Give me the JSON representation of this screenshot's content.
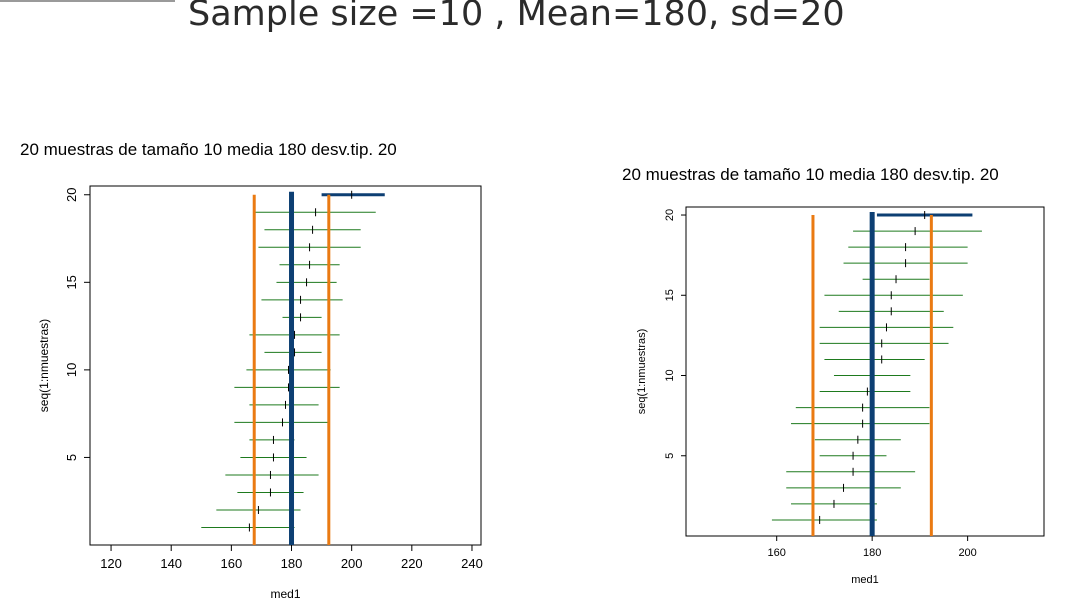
{
  "slide": {
    "title": "Sample size =10 , Mean=180, sd=20"
  },
  "chart_data": [
    {
      "type": "interval",
      "title": "20  muestras de tamaño  10  media  180  desv.tip.  20",
      "xlabel": "med1",
      "ylabel": "seq(1:nmuestras)",
      "xlim": [
        113,
        243
      ],
      "ylim": [
        0,
        20.5
      ],
      "xticks": [
        "120",
        "140",
        "160",
        "180",
        "200",
        "220",
        "240"
      ],
      "yticks": [
        "5",
        "10",
        "15",
        "20"
      ],
      "true_mean": 180,
      "limits": [
        167.6,
        192.4
      ],
      "colors": {
        "interval": "#1e7a1e",
        "miss": "#0d3f73",
        "mean": "#0d3f73",
        "limit": "#ea7a12"
      },
      "intervals": [
        {
          "i": 1,
          "lo": 150,
          "hi": 181,
          "mean": 166
        },
        {
          "i": 2,
          "lo": 155,
          "hi": 183,
          "mean": 169
        },
        {
          "i": 3,
          "lo": 162,
          "hi": 184,
          "mean": 173
        },
        {
          "i": 4,
          "lo": 158,
          "hi": 189,
          "mean": 173
        },
        {
          "i": 5,
          "lo": 163,
          "hi": 185,
          "mean": 174
        },
        {
          "i": 6,
          "lo": 166,
          "hi": 181,
          "mean": 174
        },
        {
          "i": 7,
          "lo": 161,
          "hi": 192,
          "mean": 177
        },
        {
          "i": 8,
          "lo": 166,
          "hi": 189,
          "mean": 178
        },
        {
          "i": 9,
          "lo": 161,
          "hi": 196,
          "mean": 179
        },
        {
          "i": 10,
          "lo": 165,
          "hi": 193,
          "mean": 179
        },
        {
          "i": 11,
          "lo": 171,
          "hi": 190,
          "mean": 181
        },
        {
          "i": 12,
          "lo": 166,
          "hi": 196,
          "mean": 181
        },
        {
          "i": 13,
          "lo": 177,
          "hi": 190,
          "mean": 183
        },
        {
          "i": 14,
          "lo": 170,
          "hi": 197,
          "mean": 183
        },
        {
          "i": 15,
          "lo": 175,
          "hi": 195,
          "mean": 185
        },
        {
          "i": 16,
          "lo": 176,
          "hi": 196,
          "mean": 186
        },
        {
          "i": 17,
          "lo": 169,
          "hi": 203,
          "mean": 186
        },
        {
          "i": 18,
          "lo": 171,
          "hi": 203,
          "mean": 187
        },
        {
          "i": 19,
          "lo": 168,
          "hi": 208,
          "mean": 188
        },
        {
          "i": 20,
          "lo": 190,
          "hi": 211,
          "mean": 200
        }
      ]
    },
    {
      "type": "interval",
      "title": "20  muestras de tamaño  10  media  180  desv.tip.  20",
      "xlabel": "med1",
      "ylabel": "seq(1:nmuestras)",
      "xlim": [
        141,
        216
      ],
      "ylim": [
        0,
        20.5
      ],
      "xticks": [
        "160",
        "180",
        "200"
      ],
      "yticks": [
        "5",
        "10",
        "15",
        "20"
      ],
      "true_mean": 180,
      "limits": [
        167.6,
        192.4
      ],
      "colors": {
        "interval": "#1e7a1e",
        "miss": "#0d3f73",
        "mean": "#0d3f73",
        "limit": "#ea7a12"
      },
      "intervals": [
        {
          "i": 1,
          "lo": 159,
          "hi": 181,
          "mean": 169
        },
        {
          "i": 2,
          "lo": 163,
          "hi": 181,
          "mean": 172
        },
        {
          "i": 3,
          "lo": 162,
          "hi": 186,
          "mean": 174
        },
        {
          "i": 4,
          "lo": 162,
          "hi": 189,
          "mean": 176
        },
        {
          "i": 5,
          "lo": 169,
          "hi": 183,
          "mean": 176
        },
        {
          "i": 6,
          "lo": 168,
          "hi": 186,
          "mean": 177
        },
        {
          "i": 7,
          "lo": 163,
          "hi": 192,
          "mean": 178
        },
        {
          "i": 8,
          "lo": 164,
          "hi": 192,
          "mean": 178
        },
        {
          "i": 9,
          "lo": 169,
          "hi": 188,
          "mean": 179
        },
        {
          "i": 10,
          "lo": 172,
          "hi": 188,
          "mean": 180
        },
        {
          "i": 11,
          "lo": 170,
          "hi": 191,
          "mean": 182
        },
        {
          "i": 12,
          "lo": 169,
          "hi": 196,
          "mean": 182
        },
        {
          "i": 13,
          "lo": 169,
          "hi": 197,
          "mean": 183
        },
        {
          "i": 14,
          "lo": 173,
          "hi": 195,
          "mean": 184
        },
        {
          "i": 15,
          "lo": 170,
          "hi": 199,
          "mean": 184
        },
        {
          "i": 16,
          "lo": 178,
          "hi": 192,
          "mean": 185
        },
        {
          "i": 17,
          "lo": 174,
          "hi": 200,
          "mean": 187
        },
        {
          "i": 18,
          "lo": 175,
          "hi": 200,
          "mean": 187
        },
        {
          "i": 19,
          "lo": 176,
          "hi": 203,
          "mean": 189
        },
        {
          "i": 20,
          "lo": 181,
          "hi": 201,
          "mean": 191
        }
      ]
    }
  ]
}
